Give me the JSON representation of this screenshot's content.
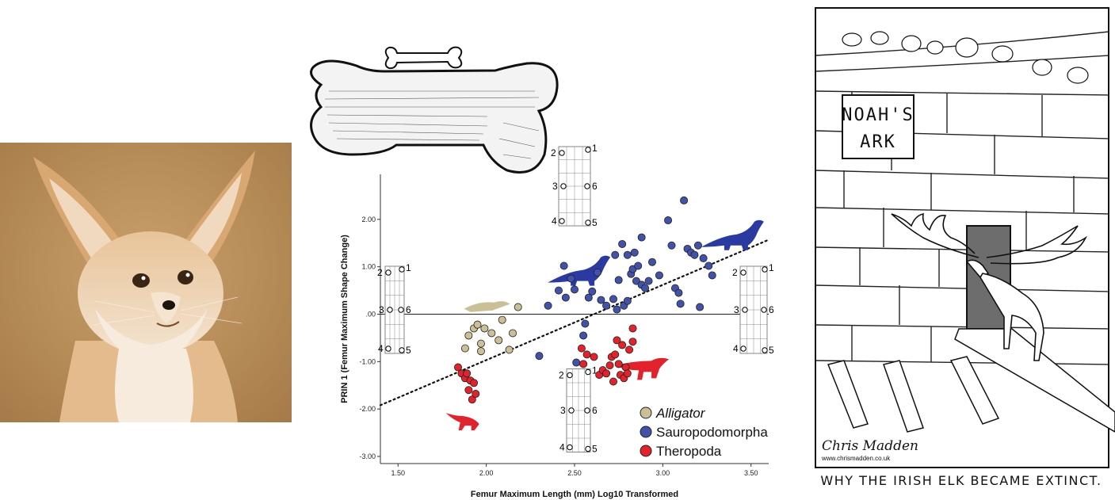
{
  "fox_photo": {
    "subject": "fennec fox"
  },
  "chart_data": {
    "type": "scatter",
    "xlabel": "Femur Maximum Length (mm) Log10 Transformed",
    "ylabel": "PRIN 1 (Femur Maximum Shape Change)",
    "xlim": [
      1.4,
      3.6
    ],
    "ylim": [
      -3.15,
      2.95
    ],
    "x_ticks": [
      1.5,
      2.0,
      2.5,
      3.0,
      3.5
    ],
    "x_tick_labels": [
      "1.50",
      "2.00",
      "2.50",
      "3.00",
      "3.50"
    ],
    "y_ticks": [
      -3,
      -2,
      -1,
      0,
      1,
      2
    ],
    "y_tick_labels": [
      "-3.00",
      "-2.00",
      "-1.00",
      ".00",
      "1.00",
      "2.00"
    ],
    "zero_line": true,
    "trend_line": {
      "style": "dotted",
      "from": [
        1.4,
        -1.92
      ],
      "to": [
        3.6,
        1.57
      ]
    },
    "legend": {
      "position": "bottom-right"
    },
    "series": [
      {
        "name": "Alligator",
        "italic": true,
        "color": "#cbbf98",
        "points": [
          [
            1.88,
            -0.72
          ],
          [
            1.9,
            -0.45
          ],
          [
            1.93,
            -0.3
          ],
          [
            1.95,
            -0.22
          ],
          [
            1.97,
            -0.62
          ],
          [
            1.97,
            -0.78
          ],
          [
            1.99,
            -0.3
          ],
          [
            2.03,
            -0.4
          ],
          [
            2.07,
            -0.55
          ],
          [
            2.09,
            -0.12
          ],
          [
            2.13,
            -0.75
          ],
          [
            2.15,
            -0.4
          ],
          [
            2.18,
            0.15
          ]
        ]
      },
      {
        "name": "Sauropodomorpha",
        "italic": false,
        "color": "#4152a8",
        "points": [
          [
            2.3,
            -0.88
          ],
          [
            2.35,
            0.18
          ],
          [
            2.41,
            0.5
          ],
          [
            2.44,
            1.02
          ],
          [
            2.45,
            0.35
          ],
          [
            2.48,
            0.75
          ],
          [
            2.5,
            0.52
          ],
          [
            2.51,
            -1.02
          ],
          [
            2.55,
            -0.45
          ],
          [
            2.56,
            -0.2
          ],
          [
            2.58,
            0.35
          ],
          [
            2.6,
            0.48
          ],
          [
            2.63,
            0.88
          ],
          [
            2.65,
            0.3
          ],
          [
            2.68,
            0.18
          ],
          [
            2.72,
            0.32
          ],
          [
            2.73,
            1.25
          ],
          [
            2.74,
            0.1
          ],
          [
            2.75,
            0.72
          ],
          [
            2.77,
            1.48
          ],
          [
            2.78,
            0.18
          ],
          [
            2.8,
            0.28
          ],
          [
            2.8,
            1.25
          ],
          [
            2.82,
            0.85
          ],
          [
            2.83,
            0.95
          ],
          [
            2.84,
            1.3
          ],
          [
            2.85,
            0.7
          ],
          [
            2.86,
            1.02
          ],
          [
            2.88,
            0.62
          ],
          [
            2.88,
            1.62
          ],
          [
            2.9,
            0.55
          ],
          [
            2.92,
            0.7
          ],
          [
            2.94,
            1.1
          ],
          [
            2.98,
            0.82
          ],
          [
            3.03,
            1.98
          ],
          [
            3.05,
            1.45
          ],
          [
            3.07,
            0.55
          ],
          [
            3.09,
            0.45
          ],
          [
            3.1,
            0.22
          ],
          [
            3.12,
            2.4
          ],
          [
            3.14,
            1.38
          ],
          [
            3.16,
            1.3
          ],
          [
            3.18,
            1.25
          ],
          [
            3.2,
            1.45
          ],
          [
            3.21,
            0.15
          ],
          [
            3.23,
            1.18
          ],
          [
            3.26,
            1.02
          ],
          [
            3.28,
            0.82
          ]
        ]
      },
      {
        "name": "Theropoda",
        "italic": false,
        "color": "#e0232c",
        "points": [
          [
            1.84,
            -1.12
          ],
          [
            1.86,
            -1.25
          ],
          [
            1.88,
            -1.35
          ],
          [
            1.89,
            -1.25
          ],
          [
            1.9,
            -1.6
          ],
          [
            1.91,
            -1.4
          ],
          [
            1.92,
            -1.8
          ],
          [
            1.93,
            -1.45
          ],
          [
            1.94,
            -1.68
          ],
          [
            2.54,
            -0.72
          ],
          [
            2.55,
            -1.05
          ],
          [
            2.57,
            -0.85
          ],
          [
            2.61,
            -0.9
          ],
          [
            2.64,
            -1.28
          ],
          [
            2.66,
            -1.18
          ],
          [
            2.68,
            -1.25
          ],
          [
            2.7,
            -1.08
          ],
          [
            2.71,
            -0.9
          ],
          [
            2.72,
            -1.42
          ],
          [
            2.73,
            -0.85
          ],
          [
            2.74,
            -0.55
          ],
          [
            2.75,
            -1.05
          ],
          [
            2.76,
            -1.28
          ],
          [
            2.77,
            -0.65
          ],
          [
            2.78,
            -1.35
          ],
          [
            2.79,
            -1.12
          ],
          [
            2.8,
            -1.25
          ],
          [
            2.81,
            -0.75
          ],
          [
            2.83,
            -0.58
          ],
          [
            2.83,
            -0.3
          ]
        ]
      }
    ],
    "silhouettes": [
      {
        "kind": "alligator",
        "color": "#cbbf98",
        "x": 2.0,
        "y": 0.18
      },
      {
        "kind": "sauropod",
        "color": "#2b3aa0",
        "x": 2.55,
        "y": 0.8
      },
      {
        "kind": "sauropod",
        "color": "#2b3aa0",
        "x": 3.42,
        "y": 1.55
      },
      {
        "kind": "theropod",
        "color": "#e0232c",
        "x": 2.9,
        "y": -1.15
      },
      {
        "kind": "theropod-small",
        "color": "#e0232c",
        "x": 1.87,
        "y": -2.25
      }
    ],
    "shape_glyphs": {
      "landmark_labels": [
        "1",
        "2",
        "3",
        "6",
        "4",
        "5"
      ]
    }
  },
  "cartoon": {
    "sign_line1": "NOAH'S",
    "sign_line2": "ARK",
    "signature": "Chris Madden",
    "url": "www.chrismadden.co.uk",
    "caption": "WHY THE IRISH ELK BECAME EXTINCT."
  }
}
